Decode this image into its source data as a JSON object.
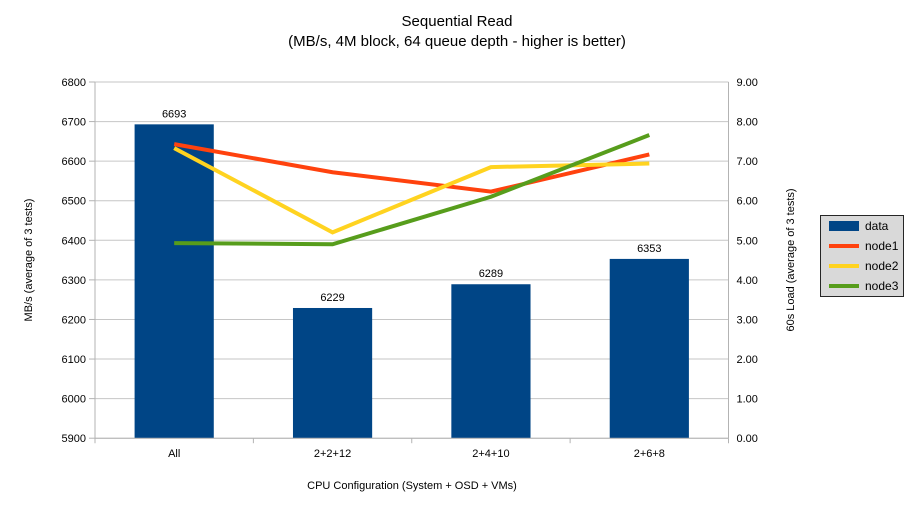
{
  "chart": {
    "title": "Sequential Read",
    "subtitle": "(MB/s, 4M block, 64 queue depth - higher is better)"
  },
  "chart_data": {
    "type": "bar+line",
    "categories": [
      "All",
      "2+2+12",
      "2+4+10",
      "2+6+8"
    ],
    "series": [
      {
        "name": "data",
        "type": "bar",
        "axis": "left",
        "color": "#004586",
        "values": [
          6693,
          6229,
          6289,
          6353
        ]
      },
      {
        "name": "node1",
        "type": "line",
        "axis": "right",
        "color": "#ff420e",
        "values": [
          7.43,
          6.72,
          6.23,
          7.17
        ]
      },
      {
        "name": "node2",
        "type": "line",
        "axis": "right",
        "color": "#ffd320",
        "values": [
          7.33,
          5.2,
          6.85,
          6.94
        ]
      },
      {
        "name": "node3",
        "type": "line",
        "axis": "right",
        "color": "#579d1c",
        "values": [
          4.93,
          4.9,
          6.1,
          7.66
        ]
      }
    ],
    "xlabel": "CPU Configuration (System + OSD + VMs)",
    "ylabel_left": "MB/s (average of 3 tests)",
    "ylabel_right": "60s Load (average of 3 tests)",
    "left_axis": {
      "min": 5900,
      "max": 6800,
      "step": 100,
      "decimals": 0
    },
    "right_axis": {
      "min": 0,
      "max": 9,
      "step": 1,
      "decimals": 2
    },
    "grid": true,
    "legend_position": "right"
  },
  "colors": {
    "background": "#ffffff",
    "grid": "#c6c6c6",
    "axis": "#b3b3b3",
    "text": "#000000",
    "legend_bg": "#d9d9d9",
    "legend_border": "#262626"
  }
}
